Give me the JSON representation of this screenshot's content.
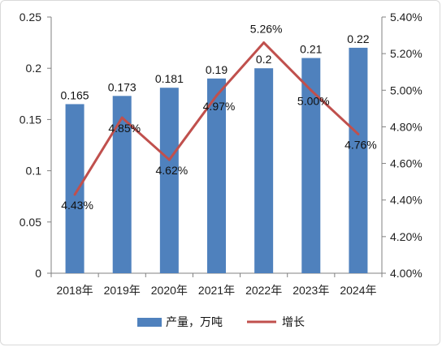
{
  "chart_data": {
    "type": "bar+line",
    "categories": [
      "2018年",
      "2019年",
      "2020年",
      "2021年",
      "2022年",
      "2023年",
      "2024年"
    ],
    "series": [
      {
        "name": "产量，万吨",
        "type": "bar",
        "axis": "left",
        "values": [
          0.165,
          0.173,
          0.181,
          0.19,
          0.2,
          0.21,
          0.22
        ],
        "labels": [
          "0.165",
          "0.173",
          "0.181",
          "0.19",
          "0.2",
          "0.21",
          "0.22"
        ],
        "color": "#4f81bd"
      },
      {
        "name": "增长",
        "type": "line",
        "axis": "right",
        "values": [
          4.43,
          4.85,
          4.62,
          4.97,
          5.26,
          5.0,
          4.76
        ],
        "labels": [
          "4.43%",
          "4.85%",
          "4.62%",
          "4.97%",
          "5.26%",
          "5.00%",
          "4.76%"
        ],
        "color": "#c0504d"
      }
    ],
    "y_left": {
      "ylim": [
        0,
        0.25
      ],
      "ticks": [
        0,
        0.05,
        0.1,
        0.15,
        0.2,
        0.25
      ],
      "tick_labels": [
        "0",
        "0.05",
        "0.1",
        "0.15",
        "0.2",
        "0.25"
      ]
    },
    "y_right": {
      "ylim": [
        4.0,
        5.4
      ],
      "ticks": [
        4.0,
        4.2,
        4.4,
        4.6,
        4.8,
        5.0,
        5.2,
        5.4
      ],
      "tick_labels": [
        "4.00%",
        "4.20%",
        "4.40%",
        "4.60%",
        "4.80%",
        "5.00%",
        "5.20%",
        "5.40%"
      ]
    },
    "grid": false,
    "legend": "bottom"
  }
}
